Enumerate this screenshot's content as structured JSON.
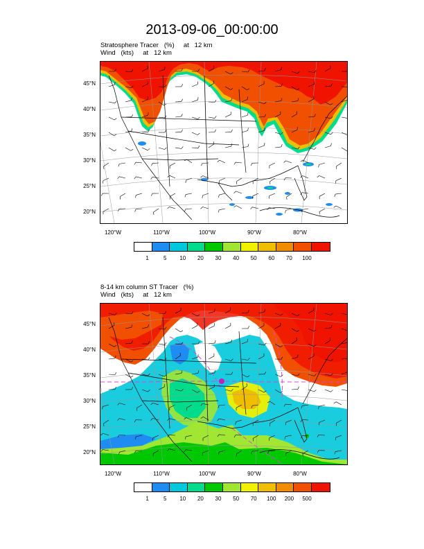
{
  "title": "2013-09-06_00:00:00",
  "panels": [
    {
      "line1": "Stratosphere Tracer   (%)     at   12 km",
      "line2": "Wind   (kts)     at   12 km",
      "lat_labels": [
        "45°N",
        "40°N",
        "35°N",
        "30°N",
        "25°N",
        "20°N"
      ],
      "lon_labels": [
        "120°W",
        "110°W",
        "100°W",
        "90°W",
        "80°W"
      ],
      "legend_labels": [
        "1",
        "5",
        "10",
        "20",
        "30",
        "40",
        "50",
        "60",
        "70",
        "100"
      ]
    },
    {
      "line1": "8-14 km column ST Tracer   (%)",
      "line2": "Wind   (kts)     at   12 km",
      "lat_labels": [
        "45°N",
        "40°N",
        "35°N",
        "30°N",
        "25°N",
        "20°N"
      ],
      "lon_labels": [
        "120°W",
        "110°W",
        "100°W",
        "90°W",
        "80°W"
      ],
      "legend_labels": [
        "1",
        "5",
        "10",
        "20",
        "30",
        "50",
        "70",
        "100",
        "200",
        "500"
      ]
    }
  ],
  "palette": [
    "#ffffff",
    "#1e8cf0",
    "#00c8dc",
    "#00dc8c",
    "#00c800",
    "#a0e632",
    "#f0f000",
    "#f0be00",
    "#f08c00",
    "#f05000",
    "#f01400"
  ]
}
